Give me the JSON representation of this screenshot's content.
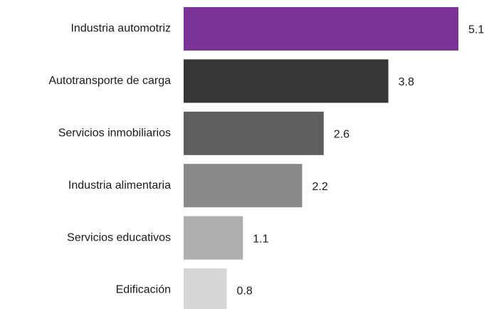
{
  "chart_data": {
    "type": "bar",
    "orientation": "horizontal",
    "categories": [
      "Industria automotriz",
      "Autotransporte de carga",
      "Servicios inmobiliarios",
      "Industria alimentaria",
      "Servicios educativos",
      "Edificación"
    ],
    "values": [
      5.1,
      3.8,
      2.6,
      2.2,
      1.1,
      0.8
    ],
    "colors": [
      "#7b3496",
      "#363636",
      "#5e5e5e",
      "#898989",
      "#afafaf",
      "#d6d6d6"
    ]
  }
}
